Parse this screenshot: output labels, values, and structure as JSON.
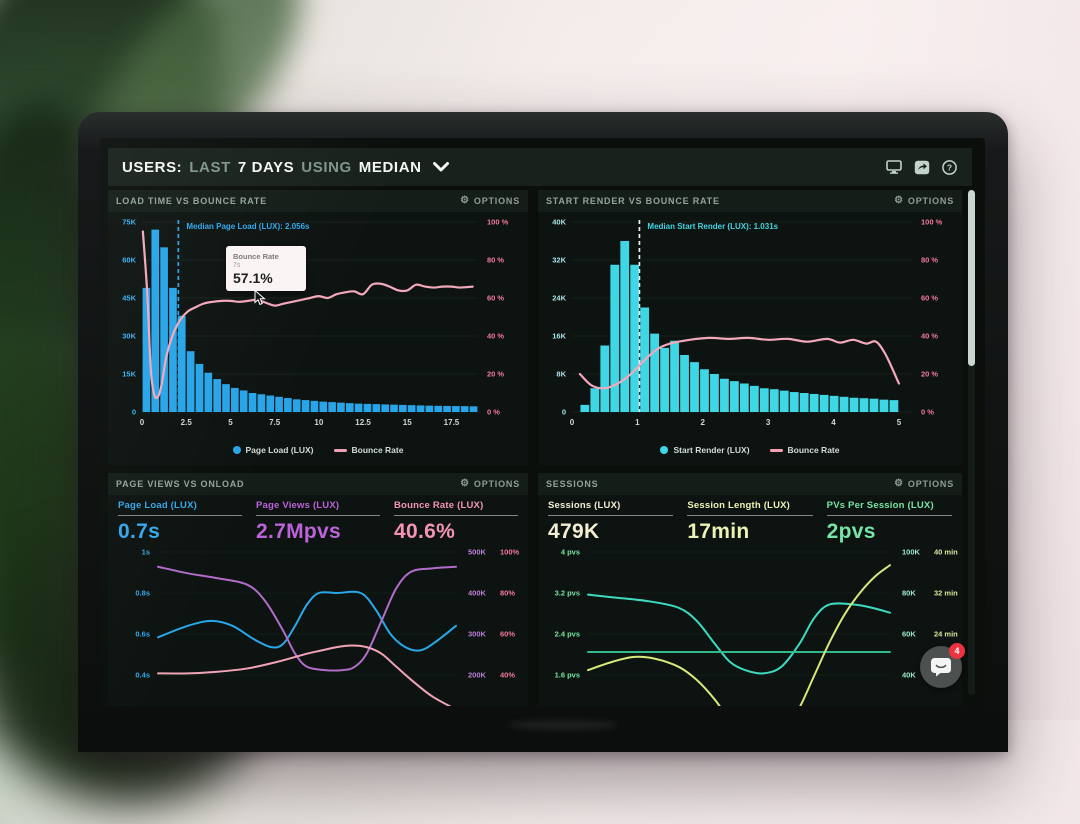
{
  "header": {
    "title_parts": [
      {
        "text": "USERS:",
        "style": "strong"
      },
      {
        "text": "LAST",
        "style": "muted"
      },
      {
        "text": "7 DAYS",
        "style": "strong"
      },
      {
        "text": "USING",
        "style": "muted"
      },
      {
        "text": "MEDIAN",
        "style": "strong"
      }
    ]
  },
  "panels": [
    {
      "title": "LOAD TIME VS BOUNCE RATE",
      "options_label": "OPTIONS"
    },
    {
      "title": "START RENDER VS BOUNCE RATE",
      "options_label": "OPTIONS"
    },
    {
      "title": "PAGE VIEWS VS ONLOAD",
      "options_label": "OPTIONS",
      "metrics": [
        {
          "label": "Page Load (LUX)",
          "value": "0.7s",
          "color": "#36a8ea"
        },
        {
          "label": "Page Views (LUX)",
          "value": "2.7Mpvs",
          "color": "#bb64d8"
        },
        {
          "label": "Bounce Rate (LUX)",
          "value": "40.6%",
          "color": "#f394b6"
        }
      ]
    },
    {
      "title": "SESSIONS",
      "options_label": "OPTIONS",
      "metrics": [
        {
          "label": "Sessions (LUX)",
          "value": "479K",
          "color": "#f2efd4"
        },
        {
          "label": "Session Length (LUX)",
          "value": "17min",
          "color": "#ecf2b4"
        },
        {
          "label": "PVs Per Session (LUX)",
          "value": "2pvs",
          "color": "#78e4a6"
        }
      ]
    }
  ],
  "tooltip": {
    "title": "Bounce Rate",
    "subtitle": "7s",
    "value": "57.1%"
  },
  "chat": {
    "badge": "4"
  },
  "chart_data": [
    {
      "type": "bar+line",
      "title": "LOAD TIME VS BOUNCE RATE",
      "xlim": [
        0,
        19
      ],
      "xticks": [
        "0",
        "2.5",
        "5",
        "7.5",
        "10",
        "12.5",
        "15",
        "17.5"
      ],
      "xtick_values": [
        0,
        2.5,
        5,
        7.5,
        10,
        12.5,
        15,
        17.5
      ],
      "bars": {
        "name": "Page Load (LUX)",
        "start": 0,
        "step": 0.5,
        "color": "#2aa5e6",
        "values": [
          49000,
          72000,
          65000,
          49000,
          38000,
          24000,
          19000,
          15500,
          13000,
          11000,
          9500,
          8500,
          7500,
          7000,
          6500,
          6000,
          5500,
          5000,
          4700,
          4400,
          4100,
          3900,
          3700,
          3500,
          3300,
          3200,
          3100,
          3000,
          2900,
          2800,
          2700,
          2600,
          2500,
          2450,
          2400,
          2350,
          2300,
          2250
        ]
      },
      "y_left": {
        "max": 75000,
        "ticks": [
          "0",
          "15K",
          "30K",
          "45K",
          "60K",
          "75K"
        ],
        "color": "#3db0ee"
      },
      "y_right": {
        "max": 100,
        "ticks": [
          "0 %",
          "20 %",
          "40 %",
          "60 %",
          "80 %",
          "100 %"
        ],
        "color": "#f2799c"
      },
      "line": {
        "name": "Bounce Rate",
        "color": "#f2a8bc",
        "points": [
          [
            0.05,
            95
          ],
          [
            0.3,
            62
          ],
          [
            0.5,
            22
          ],
          [
            0.7,
            9
          ],
          [
            0.9,
            8
          ],
          [
            1.1,
            14
          ],
          [
            1.4,
            30
          ],
          [
            1.8,
            42
          ],
          [
            2.2,
            49
          ],
          [
            2.6,
            53
          ],
          [
            3,
            55
          ],
          [
            3.5,
            57.1
          ],
          [
            4,
            58
          ],
          [
            4.5,
            58.5
          ],
          [
            5,
            58.5
          ],
          [
            5.5,
            58
          ],
          [
            6,
            58.5
          ],
          [
            6.5,
            59
          ],
          [
            7,
            57.5
          ],
          [
            7.5,
            56
          ],
          [
            8,
            57
          ],
          [
            8.5,
            58
          ],
          [
            9,
            59
          ],
          [
            9.5,
            60
          ],
          [
            10,
            61
          ],
          [
            10.5,
            60
          ],
          [
            11,
            62
          ],
          [
            11.5,
            63
          ],
          [
            12,
            63.5
          ],
          [
            12.5,
            62
          ],
          [
            13,
            67
          ],
          [
            13.5,
            67.5
          ],
          [
            14,
            66
          ],
          [
            14.5,
            64
          ],
          [
            15,
            64
          ],
          [
            15.5,
            67
          ],
          [
            16,
            66
          ],
          [
            16.5,
            65.5
          ],
          [
            17,
            66
          ],
          [
            17.5,
            66
          ],
          [
            18,
            65.5
          ],
          [
            18.7,
            66
          ]
        ]
      },
      "median": {
        "x": 2.056,
        "label": "Median Page Load (LUX): 2.056s",
        "line_color": "#2aa5e6",
        "label_color": "#35aaee"
      },
      "legend": [
        {
          "label": "Page Load (LUX)",
          "marker": "dot",
          "color": "#2aa5e6"
        },
        {
          "label": "Bounce Rate",
          "marker": "line",
          "color": "#f2a0b6"
        }
      ],
      "axis_x_color": "#cfd8d3",
      "grid_color": "#18211d"
    },
    {
      "type": "bar+line",
      "title": "START RENDER VS BOUNCE RATE",
      "xlim": [
        0,
        5.2
      ],
      "xticks": [
        "0",
        "1",
        "2",
        "3",
        "4",
        "5"
      ],
      "xtick_values": [
        0,
        1,
        2,
        3,
        4,
        5
      ],
      "bars": {
        "name": "Start Render (LUX)",
        "start": 0.12,
        "step": 0.1525,
        "color": "#41d6e4",
        "values": [
          1500,
          5000,
          14000,
          31000,
          36000,
          31000,
          22000,
          16500,
          13500,
          15000,
          12000,
          10500,
          9000,
          8000,
          7000,
          6500,
          6000,
          5500,
          5000,
          4800,
          4500,
          4200,
          4000,
          3800,
          3600,
          3400,
          3200,
          3000,
          2900,
          2800,
          2600,
          2500
        ]
      },
      "y_left": {
        "max": 40000,
        "ticks": [
          "0",
          "8K",
          "16K",
          "24K",
          "32K",
          "40K"
        ],
        "color": "#a9e2e8"
      },
      "y_right": {
        "max": 100,
        "ticks": [
          "0 %",
          "20 %",
          "40 %",
          "60 %",
          "80 %",
          "100 %"
        ],
        "color": "#f2799c"
      },
      "line": {
        "name": "Bounce Rate",
        "color": "#f2a8bc",
        "points": [
          [
            0.12,
            20
          ],
          [
            0.3,
            14
          ],
          [
            0.5,
            12.5
          ],
          [
            0.7,
            15
          ],
          [
            0.9,
            20
          ],
          [
            1.1,
            27
          ],
          [
            1.3,
            33
          ],
          [
            1.5,
            36
          ],
          [
            1.8,
            38
          ],
          [
            2.1,
            39
          ],
          [
            2.4,
            38.5
          ],
          [
            2.7,
            39
          ],
          [
            3,
            38
          ],
          [
            3.3,
            38.5
          ],
          [
            3.6,
            37
          ],
          [
            3.9,
            38.5
          ],
          [
            4.1,
            36.5
          ],
          [
            4.3,
            38
          ],
          [
            4.5,
            36
          ],
          [
            4.65,
            37
          ],
          [
            4.8,
            30
          ],
          [
            5,
            15
          ]
        ]
      },
      "median": {
        "x": 1.031,
        "label": "Median Start Render (LUX): 1.031s",
        "line_color": "#e8f2ee",
        "label_color": "#45d4e2"
      },
      "legend": [
        {
          "label": "Start Render (LUX)",
          "marker": "dot",
          "color": "#41d6e4"
        },
        {
          "label": "Bounce Rate",
          "marker": "line",
          "color": "#f2a0b6"
        }
      ],
      "axis_x_color": "#cfd8d3",
      "grid_color": "#18211d"
    },
    {
      "type": "line",
      "title": "PAGE VIEWS VS ONLOAD",
      "rows": [
        {
          "left": "1s",
          "right1": "500K",
          "right2": "100%"
        },
        {
          "left": "0.8s",
          "right1": "400K",
          "right2": "80%"
        },
        {
          "left": "0.6s",
          "right1": "300K",
          "right2": "60%"
        },
        {
          "left": "0.4s",
          "right1": "200K",
          "right2": "40%"
        }
      ],
      "row_colors": {
        "left": "#36a8ea",
        "right1": "#bb7fd4",
        "right2": "#f2799c"
      },
      "grid_color": "#141c17",
      "series": [
        {
          "name": "Page Load (LUX)",
          "color": "#2aa7e8",
          "points": [
            [
              0,
              0.48
            ],
            [
              0.1,
              0.55
            ],
            [
              0.18,
              0.58
            ],
            [
              0.25,
              0.55
            ],
            [
              0.32,
              0.47
            ],
            [
              0.38,
              0.42
            ],
            [
              0.42,
              0.44
            ],
            [
              0.46,
              0.55
            ],
            [
              0.5,
              0.68
            ],
            [
              0.54,
              0.75
            ],
            [
              0.6,
              0.75
            ],
            [
              0.68,
              0.75
            ],
            [
              0.73,
              0.65
            ],
            [
              0.78,
              0.5
            ],
            [
              0.83,
              0.42
            ],
            [
              0.88,
              0.4
            ],
            [
              0.93,
              0.45
            ],
            [
              1,
              0.55
            ]
          ]
        },
        {
          "name": "Page Views (LUX)",
          "color": "#b06cc8",
          "points": [
            [
              0,
              0.91
            ],
            [
              0.1,
              0.87
            ],
            [
              0.2,
              0.84
            ],
            [
              0.3,
              0.8
            ],
            [
              0.36,
              0.7
            ],
            [
              0.42,
              0.52
            ],
            [
              0.46,
              0.38
            ],
            [
              0.5,
              0.3
            ],
            [
              0.56,
              0.28
            ],
            [
              0.62,
              0.28
            ],
            [
              0.66,
              0.3
            ],
            [
              0.7,
              0.38
            ],
            [
              0.75,
              0.58
            ],
            [
              0.8,
              0.78
            ],
            [
              0.85,
              0.88
            ],
            [
              0.92,
              0.9
            ],
            [
              1,
              0.91
            ]
          ]
        },
        {
          "name": "Bounce Rate (LUX)",
          "color": "#f0a3b8",
          "points": [
            [
              0,
              0.26
            ],
            [
              0.1,
              0.26
            ],
            [
              0.2,
              0.27
            ],
            [
              0.3,
              0.29
            ],
            [
              0.4,
              0.33
            ],
            [
              0.5,
              0.38
            ],
            [
              0.55,
              0.4
            ],
            [
              0.6,
              0.42
            ],
            [
              0.65,
              0.43
            ],
            [
              0.7,
              0.42
            ],
            [
              0.75,
              0.38
            ],
            [
              0.8,
              0.3
            ],
            [
              0.85,
              0.22
            ],
            [
              0.92,
              0.12
            ],
            [
              1,
              0.04
            ]
          ]
        }
      ]
    },
    {
      "type": "line",
      "title": "SESSIONS",
      "rows": [
        {
          "left": "4 pvs",
          "right1": "100K",
          "right2": "40 min"
        },
        {
          "left": "3.2 pvs",
          "right1": "80K",
          "right2": "32 min"
        },
        {
          "left": "2.4 pvs",
          "right1": "60K",
          "right2": "24 min"
        },
        {
          "left": "1.6 pvs",
          "right1": "40K",
          "right2": ""
        }
      ],
      "row_colors": {
        "left": "#78e4a6",
        "right1": "#9fe9c9",
        "right2": "#d9e89c"
      },
      "grid_color": "#141c17",
      "series": [
        {
          "name": "Sessions (LUX)",
          "color": "#3fd9c0",
          "points": [
            [
              0,
              0.74
            ],
            [
              0.1,
              0.72
            ],
            [
              0.2,
              0.7
            ],
            [
              0.3,
              0.66
            ],
            [
              0.36,
              0.58
            ],
            [
              0.42,
              0.44
            ],
            [
              0.47,
              0.33
            ],
            [
              0.52,
              0.28
            ],
            [
              0.58,
              0.26
            ],
            [
              0.64,
              0.3
            ],
            [
              0.7,
              0.44
            ],
            [
              0.75,
              0.6
            ],
            [
              0.8,
              0.68
            ],
            [
              0.88,
              0.68
            ],
            [
              0.94,
              0.66
            ],
            [
              1,
              0.63
            ]
          ]
        },
        {
          "name": "PVs Per Session (LUX)",
          "color": "#35b98a",
          "points": [
            [
              0,
              0.39
            ],
            [
              0.5,
              0.39
            ],
            [
              1,
              0.39
            ]
          ]
        },
        {
          "name": "Session Length (LUX)",
          "color": "#d8e87c",
          "points": [
            [
              0,
              0.28
            ],
            [
              0.08,
              0.33
            ],
            [
              0.15,
              0.36
            ],
            [
              0.22,
              0.35
            ],
            [
              0.3,
              0.3
            ],
            [
              0.36,
              0.22
            ],
            [
              0.42,
              0.1
            ],
            [
              0.48,
              -0.05
            ],
            [
              0.54,
              -0.15
            ],
            [
              0.6,
              -0.18
            ],
            [
              0.65,
              -0.1
            ],
            [
              0.7,
              0.05
            ],
            [
              0.75,
              0.25
            ],
            [
              0.8,
              0.45
            ],
            [
              0.85,
              0.62
            ],
            [
              0.9,
              0.75
            ],
            [
              0.95,
              0.85
            ],
            [
              1,
              0.92
            ]
          ]
        }
      ]
    }
  ]
}
